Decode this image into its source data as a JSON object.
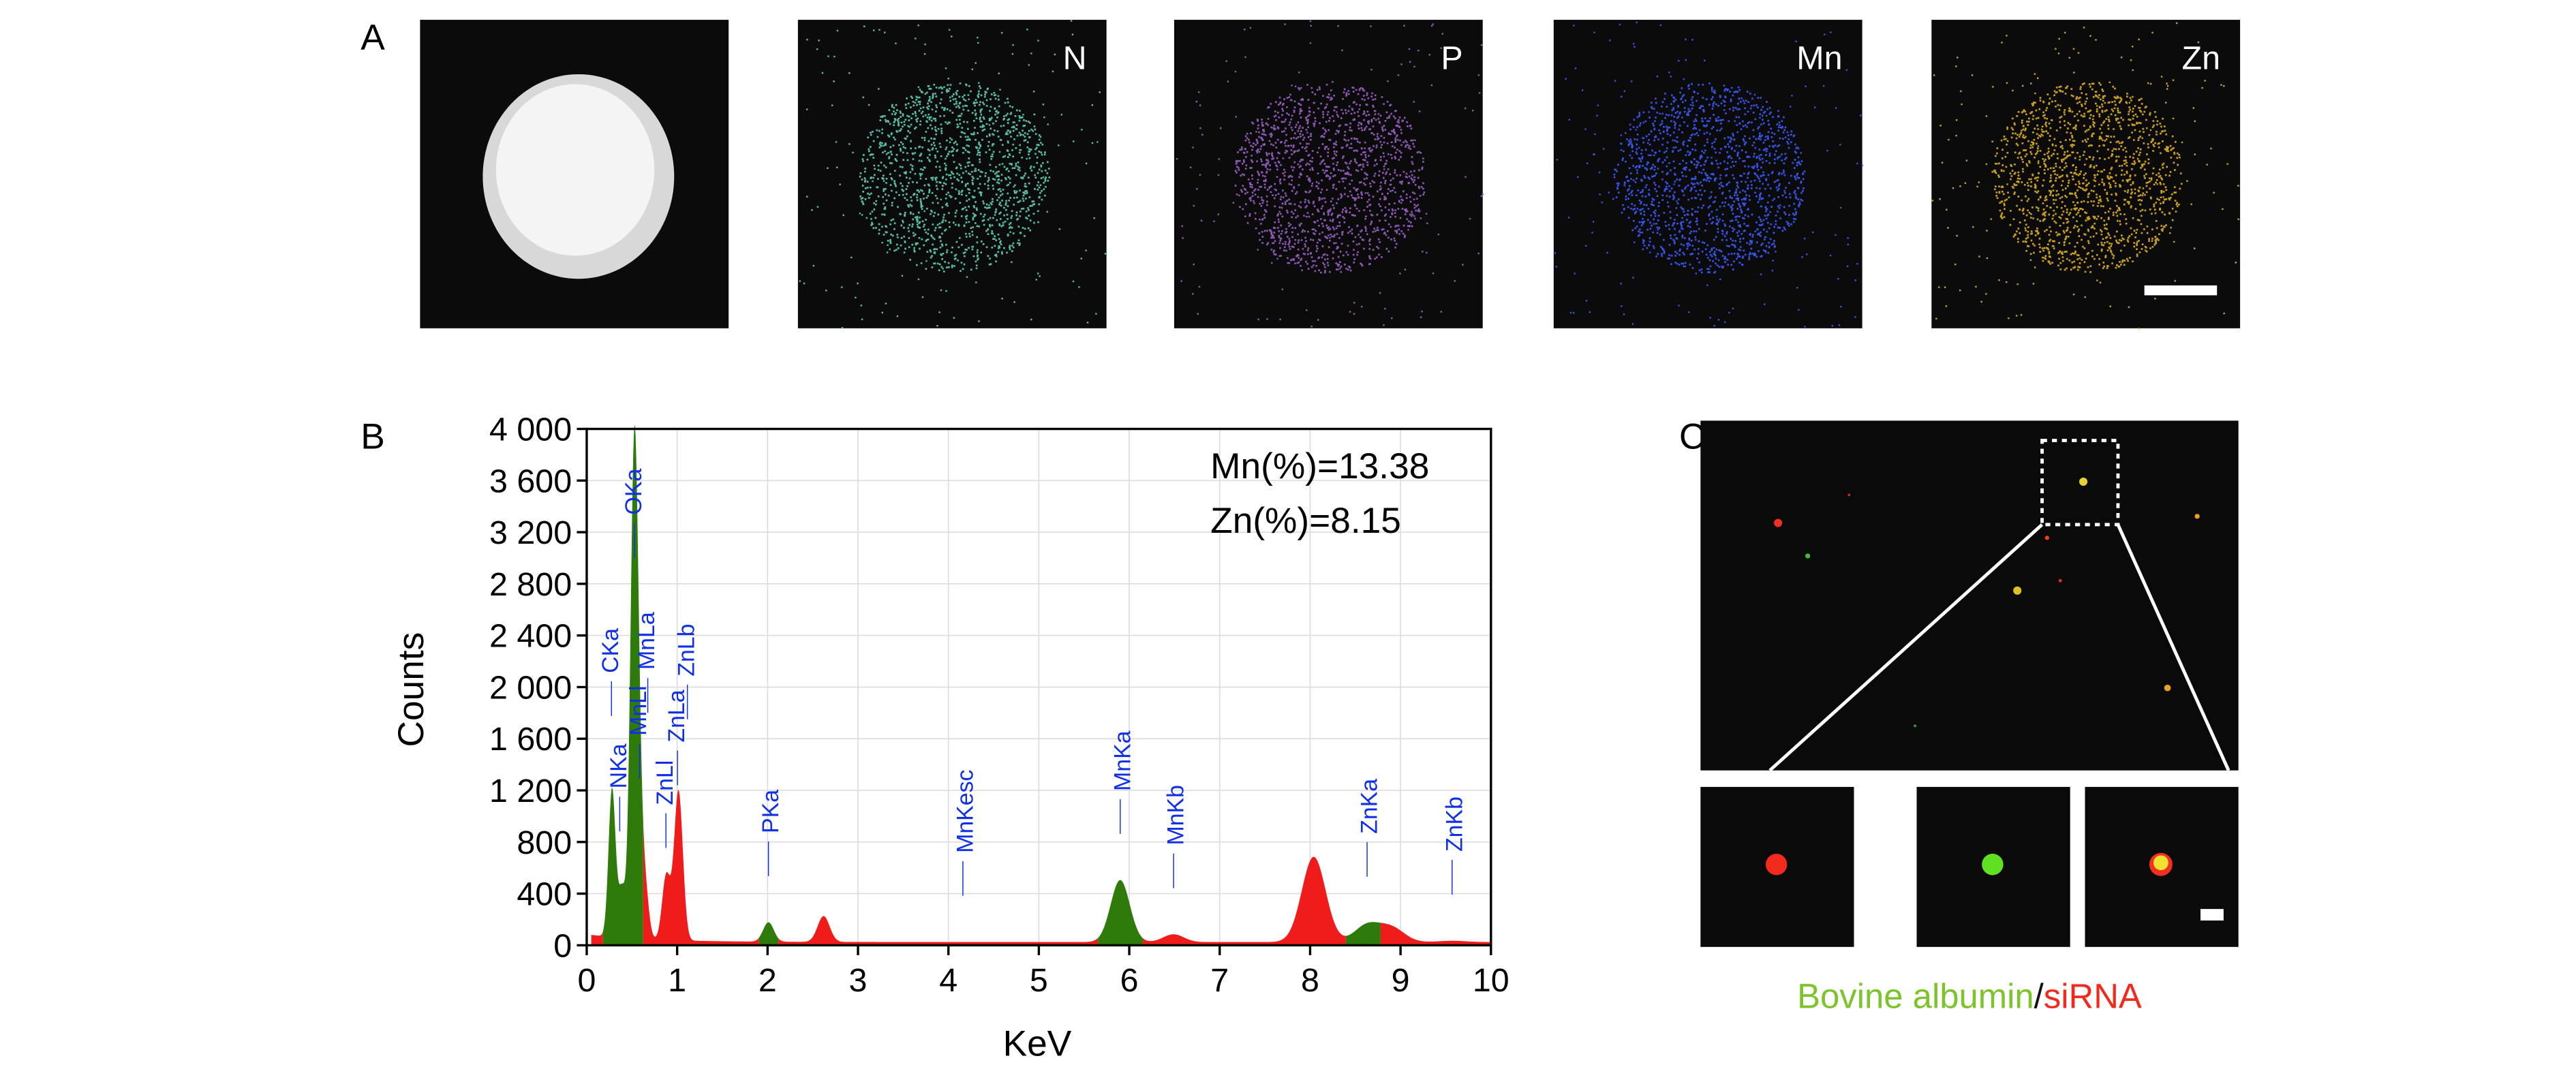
{
  "panel_a": {
    "label": "A",
    "maps": [
      {
        "label": "",
        "kind": "haadf"
      },
      {
        "label": "N",
        "color": "#5fd0b8"
      },
      {
        "label": "P",
        "color": "#9a5fc8"
      },
      {
        "label": "Mn",
        "color": "#3a5cff"
      },
      {
        "label": "Zn",
        "color": "#e0b020"
      }
    ]
  },
  "panel_c": {
    "label": "C",
    "caption_green": "Bovine albumin",
    "caption_sep": "/",
    "caption_red": "siRNA",
    "colors": {
      "green": "#7cc42a",
      "red": "#f02a1c",
      "sep": "#111111"
    }
  },
  "chart_data": {
    "type": "area",
    "panel_label": "B",
    "title": "",
    "xlabel": "KeV",
    "ylabel": "Counts",
    "xlim": [
      0,
      10
    ],
    "ylim": [
      0,
      4000
    ],
    "grid": true,
    "xticks": [
      "0",
      "1",
      "2",
      "3",
      "4",
      "5",
      "6",
      "7",
      "8",
      "9",
      "10"
    ],
    "yticks": [
      "0",
      "400",
      "800",
      "1 200",
      "1 600",
      "2 000",
      "2 400",
      "2 800",
      "3 200",
      "3 600",
      "4 000"
    ],
    "annotations": [
      "Mn(%)=13.38",
      "Zn(%)=8.15"
    ],
    "colors": {
      "identified": "#2e7a0a",
      "unidentified": "#f01c1c",
      "label": "#1030e8"
    },
    "peaks": [
      {
        "label": "CKa",
        "kev": 0.28,
        "counts": 1150,
        "color": "green"
      },
      {
        "label": "NKa",
        "kev": 0.39,
        "counts": 380,
        "color": "green"
      },
      {
        "label": "OKa",
        "kev": 0.52,
        "counts": 3050,
        "color": "green"
      },
      {
        "label": "MnLl",
        "kev": 0.56,
        "counts": 1300,
        "color": "green"
      },
      {
        "label": "MnLa",
        "kev": 0.64,
        "counts": 420,
        "color": "red"
      },
      {
        "label": "ZnLl",
        "kev": 0.88,
        "counts": 500,
        "color": "red"
      },
      {
        "label": "ZnLa",
        "kev": 1.01,
        "counts": 880,
        "color": "red"
      },
      {
        "label": "ZnLb",
        "kev": 1.03,
        "counts": 300,
        "color": "red"
      },
      {
        "label": "PKa",
        "kev": 2.01,
        "counts": 150,
        "color": "green"
      },
      {
        "label": "",
        "kev": 2.62,
        "counts": 200,
        "color": "red"
      },
      {
        "label": "MnKesc",
        "kev": 4.16,
        "counts": 0,
        "color": "red"
      },
      {
        "label": "MnKa",
        "kev": 5.9,
        "counts": 480,
        "color": "green"
      },
      {
        "label": "MnKb",
        "kev": 6.49,
        "counts": 60,
        "color": "red"
      },
      {
        "label": "",
        "kev": 8.04,
        "counts": 660,
        "color": "red"
      },
      {
        "label": "ZnKa",
        "kev": 8.63,
        "counts": 130,
        "color": "green"
      },
      {
        "label": "",
        "kev": 8.9,
        "counts": 110,
        "color": "red"
      },
      {
        "label": "ZnKb",
        "kev": 9.57,
        "counts": 10,
        "color": "red"
      }
    ]
  }
}
